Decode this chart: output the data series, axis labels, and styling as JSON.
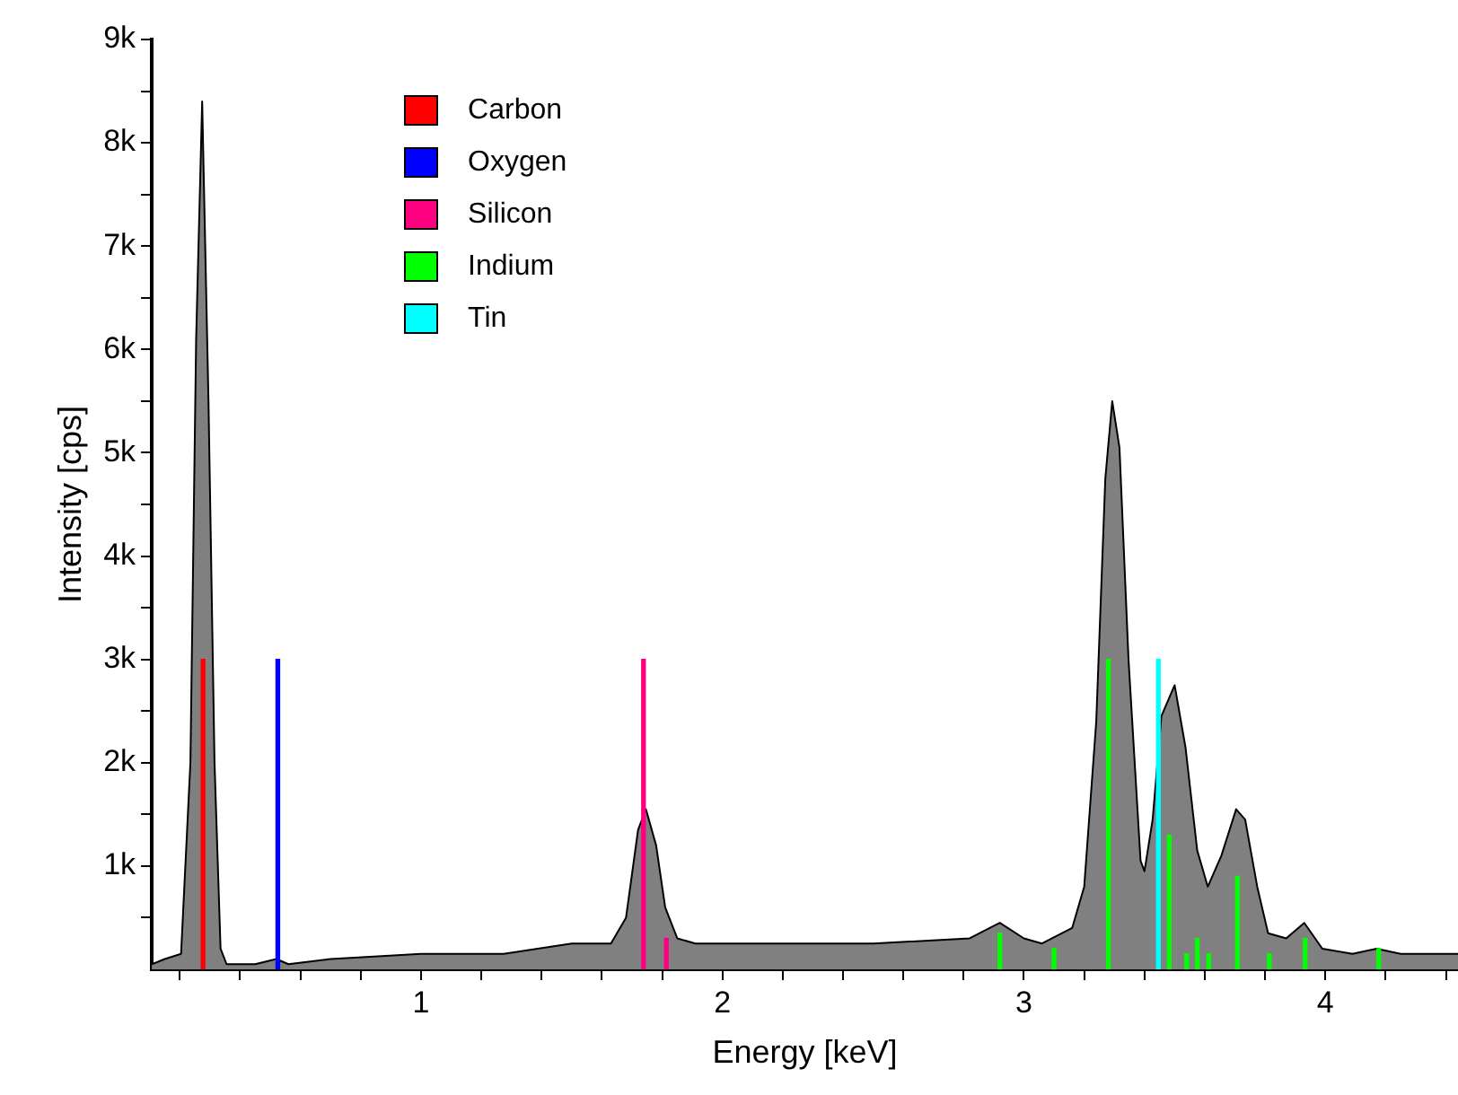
{
  "chart_data": {
    "type": "area",
    "xlabel": "Energy [keV]",
    "ylabel": "Intensity [cps]",
    "xlim": [
      0.107,
      4.44
    ],
    "ylim": [
      0,
      9000
    ],
    "xticks": [
      {
        "value": 0.2,
        "label": null
      },
      {
        "value": 0.4,
        "label": null
      },
      {
        "value": 0.6,
        "label": null
      },
      {
        "value": 0.8,
        "label": null
      },
      1,
      {
        "value": 1.2,
        "label": null
      },
      {
        "value": 1.4,
        "label": null
      },
      {
        "value": 1.6,
        "label": null
      },
      {
        "value": 1.8,
        "label": null
      },
      2,
      {
        "value": 2.2,
        "label": null
      },
      {
        "value": 2.4,
        "label": null
      },
      {
        "value": 2.6,
        "label": null
      },
      {
        "value": 2.8,
        "label": null
      },
      3,
      {
        "value": 3.2,
        "label": null
      },
      {
        "value": 3.4,
        "label": null
      },
      {
        "value": 3.6,
        "label": null
      },
      {
        "value": 3.8,
        "label": null
      },
      4,
      {
        "value": 4.2,
        "label": null
      },
      {
        "value": 4.4,
        "label": null
      }
    ],
    "yticks": [
      {
        "value": 500,
        "label": null
      },
      {
        "value": 1000,
        "label": "1k"
      },
      {
        "value": 1500,
        "label": null
      },
      {
        "value": 2000,
        "label": "2k"
      },
      {
        "value": 2500,
        "label": null
      },
      {
        "value": 3000,
        "label": "3k"
      },
      {
        "value": 3500,
        "label": null
      },
      {
        "value": 4000,
        "label": "4k"
      },
      {
        "value": 4500,
        "label": null
      },
      {
        "value": 5000,
        "label": "5k"
      },
      {
        "value": 5500,
        "label": null
      },
      {
        "value": 6000,
        "label": "6k"
      },
      {
        "value": 6500,
        "label": null
      },
      {
        "value": 7000,
        "label": "7k"
      },
      {
        "value": 7500,
        "label": null
      },
      {
        "value": 8000,
        "label": "8k"
      },
      {
        "value": 8500,
        "label": null
      },
      {
        "value": 9000,
        "label": "9k"
      }
    ],
    "legend": "top left",
    "series": [
      {
        "name": "Carbon",
        "type": "bar",
        "color": "#ff0000",
        "x": [
          0.277
        ],
        "values": [
          3000
        ]
      },
      {
        "name": "Oxygen",
        "type": "bar",
        "color": "#0000ff",
        "x": [
          0.525
        ],
        "values": [
          3000
        ]
      },
      {
        "name": "Silicon",
        "type": "bar",
        "color": "#ff0080",
        "x": [
          1.738,
          1.814
        ],
        "values": [
          3000,
          300
        ]
      },
      {
        "name": "Indium",
        "type": "bar",
        "color": "#00ff00",
        "x": [
          2.92,
          3.1,
          3.28,
          3.482,
          3.54,
          3.575,
          3.613,
          3.708,
          3.814,
          3.933,
          4.177
        ],
        "values": [
          350,
          200,
          3000,
          1300,
          150,
          300,
          150,
          900,
          150,
          300,
          200
        ]
      },
      {
        "name": "Tin",
        "type": "bar",
        "color": "#00ffff",
        "x": [
          3.446
        ],
        "values": [
          3000
        ]
      },
      {
        "color": "#808080",
        "x": [
          0.107,
          0.15,
          0.204,
          0.235,
          0.254,
          0.274,
          0.295,
          0.315,
          0.335,
          0.355,
          0.45,
          0.52,
          0.56,
          0.7,
          1.0,
          1.274,
          1.5,
          1.63,
          1.68,
          1.72,
          1.746,
          1.78,
          1.81,
          1.85,
          1.91,
          2.2,
          2.5,
          2.82,
          2.92,
          3.0,
          3.06,
          3.16,
          3.2,
          3.24,
          3.27,
          3.293,
          3.317,
          3.347,
          3.387,
          3.4,
          3.427,
          3.456,
          3.5,
          3.536,
          3.575,
          3.61,
          3.655,
          3.704,
          3.734,
          3.774,
          3.81,
          3.87,
          3.93,
          3.99,
          4.09,
          4.17,
          4.25,
          4.44
        ],
        "values": [
          50,
          100,
          150,
          2000,
          6100,
          8400,
          5500,
          2000,
          200,
          50,
          50,
          100,
          50,
          100,
          150,
          150,
          250,
          250,
          500,
          1350,
          1550,
          1200,
          600,
          300,
          250,
          250,
          250,
          300,
          450,
          300,
          250,
          400,
          800,
          2400,
          4750,
          5500,
          5050,
          3000,
          1050,
          950,
          1450,
          2450,
          2750,
          2150,
          1150,
          800,
          1100,
          1550,
          1450,
          800,
          350,
          300,
          450,
          200,
          150,
          200,
          150,
          150
        ]
      }
    ]
  }
}
